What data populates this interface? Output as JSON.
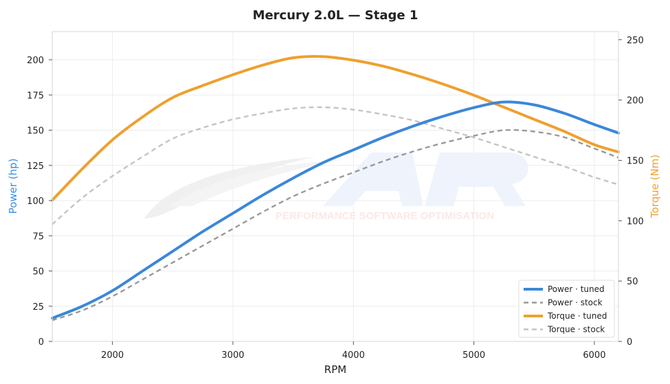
{
  "chart_data": {
    "type": "line",
    "title": "Mercury 2.0L — Stage 1",
    "xlabel": "RPM",
    "ylabel_left": "Power (hp)",
    "ylabel_right": "Torque (Nm)",
    "xlim": [
      1500,
      6200
    ],
    "ylim_left": [
      0,
      220
    ],
    "ylim_right": [
      0,
      256.7
    ],
    "xticks": [
      2000,
      3000,
      4000,
      5000,
      6000
    ],
    "yticks_left": [
      0,
      25,
      50,
      75,
      100,
      125,
      150,
      175,
      200
    ],
    "yticks_right": [
      0,
      50,
      100,
      150,
      200,
      250
    ],
    "grid": true,
    "legend_position": "bottom-right",
    "watermark": "PERFORMANCE SOFTWARE OPTIMISATION",
    "colors": {
      "power_tuned": "#3b87d9",
      "power_stock": "#999999",
      "torque_tuned": "#eea02f",
      "torque_stock": "#c4c4c4",
      "ylabel_left": "#3b8fe0",
      "ylabel_right": "#f0a030"
    },
    "x": [
      1500,
      1750,
      2000,
      2250,
      2500,
      2750,
      3000,
      3250,
      3500,
      3750,
      4000,
      4250,
      4500,
      4750,
      5000,
      5250,
      5500,
      5750,
      6000,
      6200
    ],
    "series": [
      {
        "name": "Power · tuned",
        "axis": "left",
        "color": "#3b87d9",
        "dash": "solid",
        "values": [
          16.5,
          25,
          36,
          50,
          64,
          78,
          91,
          104,
          116,
          127,
          136,
          145,
          153,
          160,
          166,
          170,
          168,
          162,
          154,
          148
        ]
      },
      {
        "name": "Power · stock",
        "axis": "left",
        "color": "#999999",
        "dash": "dashed",
        "values": [
          15,
          22,
          32,
          44,
          56,
          68,
          80,
          92,
          103,
          112,
          120,
          128,
          135,
          141,
          146,
          150,
          149,
          145,
          137,
          130.5
        ]
      },
      {
        "name": "Torque · tuned",
        "axis": "right",
        "color": "#eea02f",
        "dash": "solid",
        "values": [
          117,
          143,
          167,
          186,
          202,
          212,
          221,
          229,
          235,
          236,
          233,
          228,
          221,
          213,
          204,
          194,
          184,
          174,
          163,
          157
        ]
      },
      {
        "name": "Torque · stock",
        "axis": "right",
        "color": "#c4c4c4",
        "dash": "dashed",
        "values": [
          97,
          119,
          137,
          153,
          168,
          177,
          184,
          189,
          193,
          194,
          192,
          188,
          183,
          176,
          169,
          161,
          153,
          145,
          136,
          130
        ]
      }
    ]
  }
}
